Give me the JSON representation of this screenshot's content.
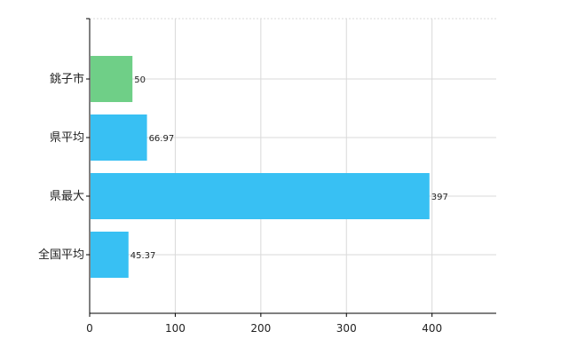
{
  "chart_data": {
    "type": "bar",
    "orientation": "horizontal",
    "categories": [
      "銚子市",
      "県平均",
      "県最大",
      "全国平均"
    ],
    "values": [
      50,
      66.97,
      397,
      45.37
    ],
    "value_labels": [
      "50",
      "66.97",
      "397",
      "45.37"
    ],
    "bar_colors": [
      "#6fcf87",
      "#38c0f3",
      "#38c0f3",
      "#38c0f3"
    ],
    "xlim": [
      0,
      475
    ],
    "xticks": [
      0,
      100,
      200,
      300,
      400
    ],
    "xtick_labels": [
      "0",
      "100",
      "200",
      "300",
      "400"
    ],
    "grid": true,
    "title": "",
    "xlabel": "",
    "ylabel": ""
  }
}
